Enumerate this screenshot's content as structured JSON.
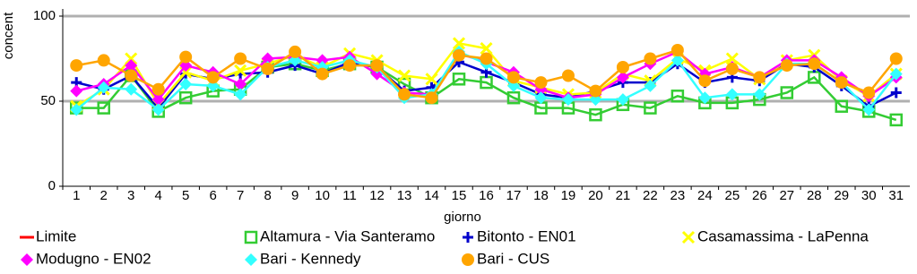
{
  "chart_data": {
    "type": "line",
    "y_label": "concent",
    "x_label": "giorno",
    "categories": [
      "1",
      "2",
      "3",
      "4",
      "5",
      "6",
      "7",
      "8",
      "9",
      "10",
      "11",
      "12",
      "13",
      "14",
      "15",
      "16",
      "17",
      "18",
      "19",
      "20",
      "21",
      "22",
      "23",
      "24",
      "25",
      "26",
      "27",
      "28",
      "29",
      "30",
      "31"
    ],
    "ylim": [
      0,
      100
    ],
    "yticks": [
      0,
      50,
      100
    ],
    "grid": true,
    "series": [
      {
        "name": "Limite",
        "color": "#ff0000",
        "marker": "dash",
        "values": [
          null,
          null,
          null,
          null,
          null,
          null,
          null,
          null,
          null,
          null,
          null,
          null,
          null,
          null,
          null,
          null,
          null,
          null,
          null,
          null,
          null,
          null,
          null,
          null,
          null,
          null,
          null,
          null,
          null,
          null,
          null
        ]
      },
      {
        "name": "Altamura - Via Santeramo",
        "color": "#33cc33",
        "marker": "square",
        "values": [
          46,
          46,
          65,
          44,
          52,
          56,
          57,
          70,
          72,
          68,
          72,
          70,
          60,
          52,
          63,
          61,
          52,
          46,
          46,
          42,
          48,
          46,
          53,
          49,
          49,
          51,
          55,
          64,
          47,
          44,
          39
        ]
      },
      {
        "name": "Bitonto - EN01",
        "color": "#0000cc",
        "marker": "plus",
        "values": [
          61,
          57,
          65,
          46,
          66,
          63,
          66,
          67,
          71,
          66,
          73,
          70,
          56,
          58,
          73,
          67,
          61,
          54,
          52,
          56,
          61,
          61,
          72,
          61,
          64,
          62,
          72,
          70,
          59,
          47,
          55
        ]
      },
      {
        "name": "Casamassima - LaPenna",
        "color": "#ffff00",
        "marker": "cross",
        "values": [
          47,
          57,
          75,
          48,
          67,
          62,
          68,
          72,
          77,
          70,
          78,
          74,
          65,
          63,
          84,
          81,
          62,
          58,
          54,
          55,
          66,
          62,
          75,
          68,
          75,
          63,
          74,
          77,
          62,
          53,
          66
        ]
      },
      {
        "name": "Modugno - EN02",
        "color": "#ff00ff",
        "marker": "diamond",
        "values": [
          56,
          60,
          71,
          51,
          71,
          67,
          60,
          75,
          76,
          74,
          76,
          66,
          55,
          54,
          78,
          73,
          67,
          57,
          52,
          54,
          64,
          72,
          79,
          66,
          70,
          64,
          74,
          74,
          64,
          53,
          64
        ]
      },
      {
        "name": "Bari - Kennedy",
        "color": "#33ffff",
        "marker": "diamond",
        "values": [
          45,
          58,
          57,
          45,
          60,
          59,
          54,
          70,
          74,
          70,
          74,
          70,
          52,
          54,
          79,
          72,
          59,
          52,
          51,
          51,
          51,
          59,
          74,
          52,
          54,
          54,
          72,
          72,
          61,
          45,
          66
        ]
      },
      {
        "name": "Bari - CUS",
        "color": "#ffa500",
        "marker": "circle",
        "values": [
          71,
          74,
          65,
          57,
          76,
          64,
          75,
          69,
          79,
          66,
          71,
          71,
          54,
          52,
          77,
          75,
          64,
          61,
          65,
          56,
          70,
          75,
          80,
          62,
          69,
          64,
          71,
          72,
          61,
          55,
          75
        ]
      }
    ]
  }
}
